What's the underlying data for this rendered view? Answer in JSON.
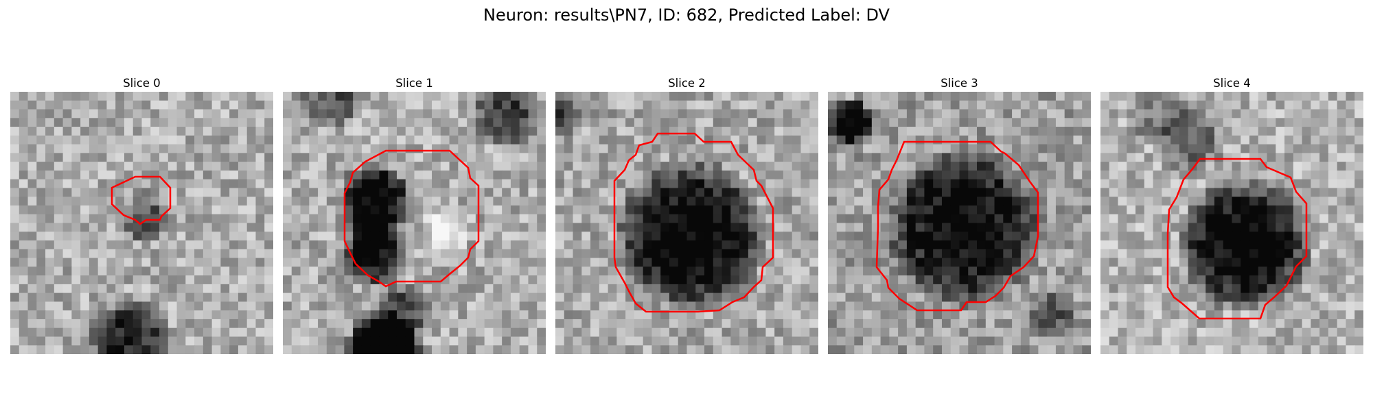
{
  "figure": {
    "title": "Neuron: results\\PN7, ID: 682, Predicted Label: DV"
  },
  "panels": [
    {
      "title": "Slice 0"
    },
    {
      "title": "Slice 1"
    },
    {
      "title": "Slice 2"
    },
    {
      "title": "Slice 3"
    },
    {
      "title": "Slice 4"
    }
  ],
  "colors": {
    "contour": "#ff0000",
    "colormap": "gray"
  }
}
